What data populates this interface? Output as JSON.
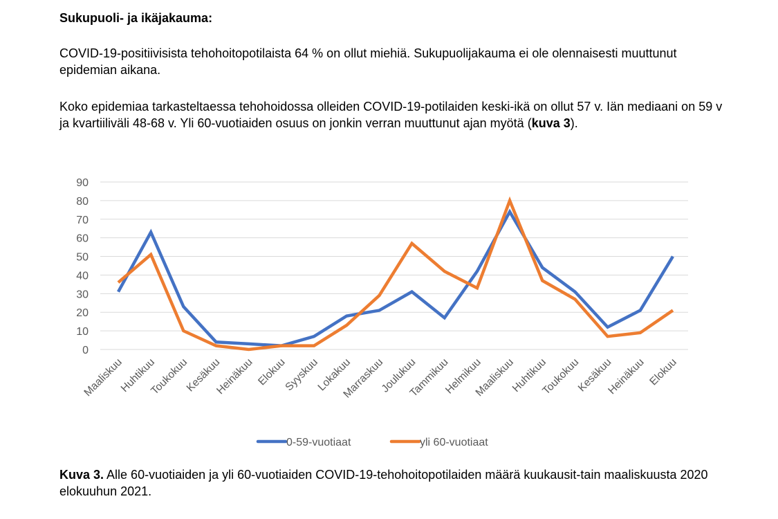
{
  "heading": "Sukupuoli- ja ikäjakauma:",
  "paragraph1": "COVID-19-positiivisista tehohoitopotilaista 64 % on ollut miehiä. Sukupuolijakauma ei ole olennaisesti muuttunut epidemian aikana.",
  "paragraph2_start": "Koko epidemiaa tarkasteltaessa tehohoidossa olleiden COVID-19-potilaiden keski-ikä on ollut 57 v. Iän mediaani on 59 v ja kvartiiliväli 48-68 v. Yli 60-vuotiaiden osuus on jonkin verran muuttunut ajan myötä (",
  "paragraph2_ref": "kuva 3",
  "paragraph2_end": ").",
  "caption_label": "Kuva 3.",
  "caption_text": " Alle 60-vuotiaiden ja yli 60-vuotiaiden COVID-19-tehohoitopotilaiden määrä kuukausit-tain maaliskuusta 2020 elokuuhun 2021.",
  "chart_data": {
    "type": "line",
    "categories": [
      "Maaliskuu",
      "Huhtikuu",
      "Toukokuu",
      "Kesäkuu",
      "Heinäkuu",
      "Elokuu",
      "Syyskuu",
      "Lokakuu",
      "Marraskuu",
      "Joulukuu",
      "Tammikuu",
      "Helmikuu",
      "Maaliskuu",
      "Huhtikuu",
      "Toukokuu",
      "Kesäkuu",
      "Heinäkuu",
      "Elokuu"
    ],
    "series": [
      {
        "name": "0-59-vuotiaat",
        "color": "#4472C4",
        "values": [
          31,
          63,
          23,
          4,
          3,
          2,
          7,
          18,
          21,
          31,
          17,
          42,
          74,
          44,
          31,
          12,
          21,
          50
        ]
      },
      {
        "name": "yli 60-vuotiaat",
        "color": "#ED7D31",
        "values": [
          36,
          51,
          10,
          2,
          0,
          2,
          2,
          13,
          29,
          57,
          42,
          33,
          80,
          37,
          27,
          7,
          9,
          21
        ]
      }
    ],
    "yticks": [
      0,
      10,
      20,
      30,
      40,
      50,
      60,
      70,
      80,
      90
    ],
    "ylim": [
      0,
      90
    ],
    "grid": true,
    "legend": "bottom"
  }
}
